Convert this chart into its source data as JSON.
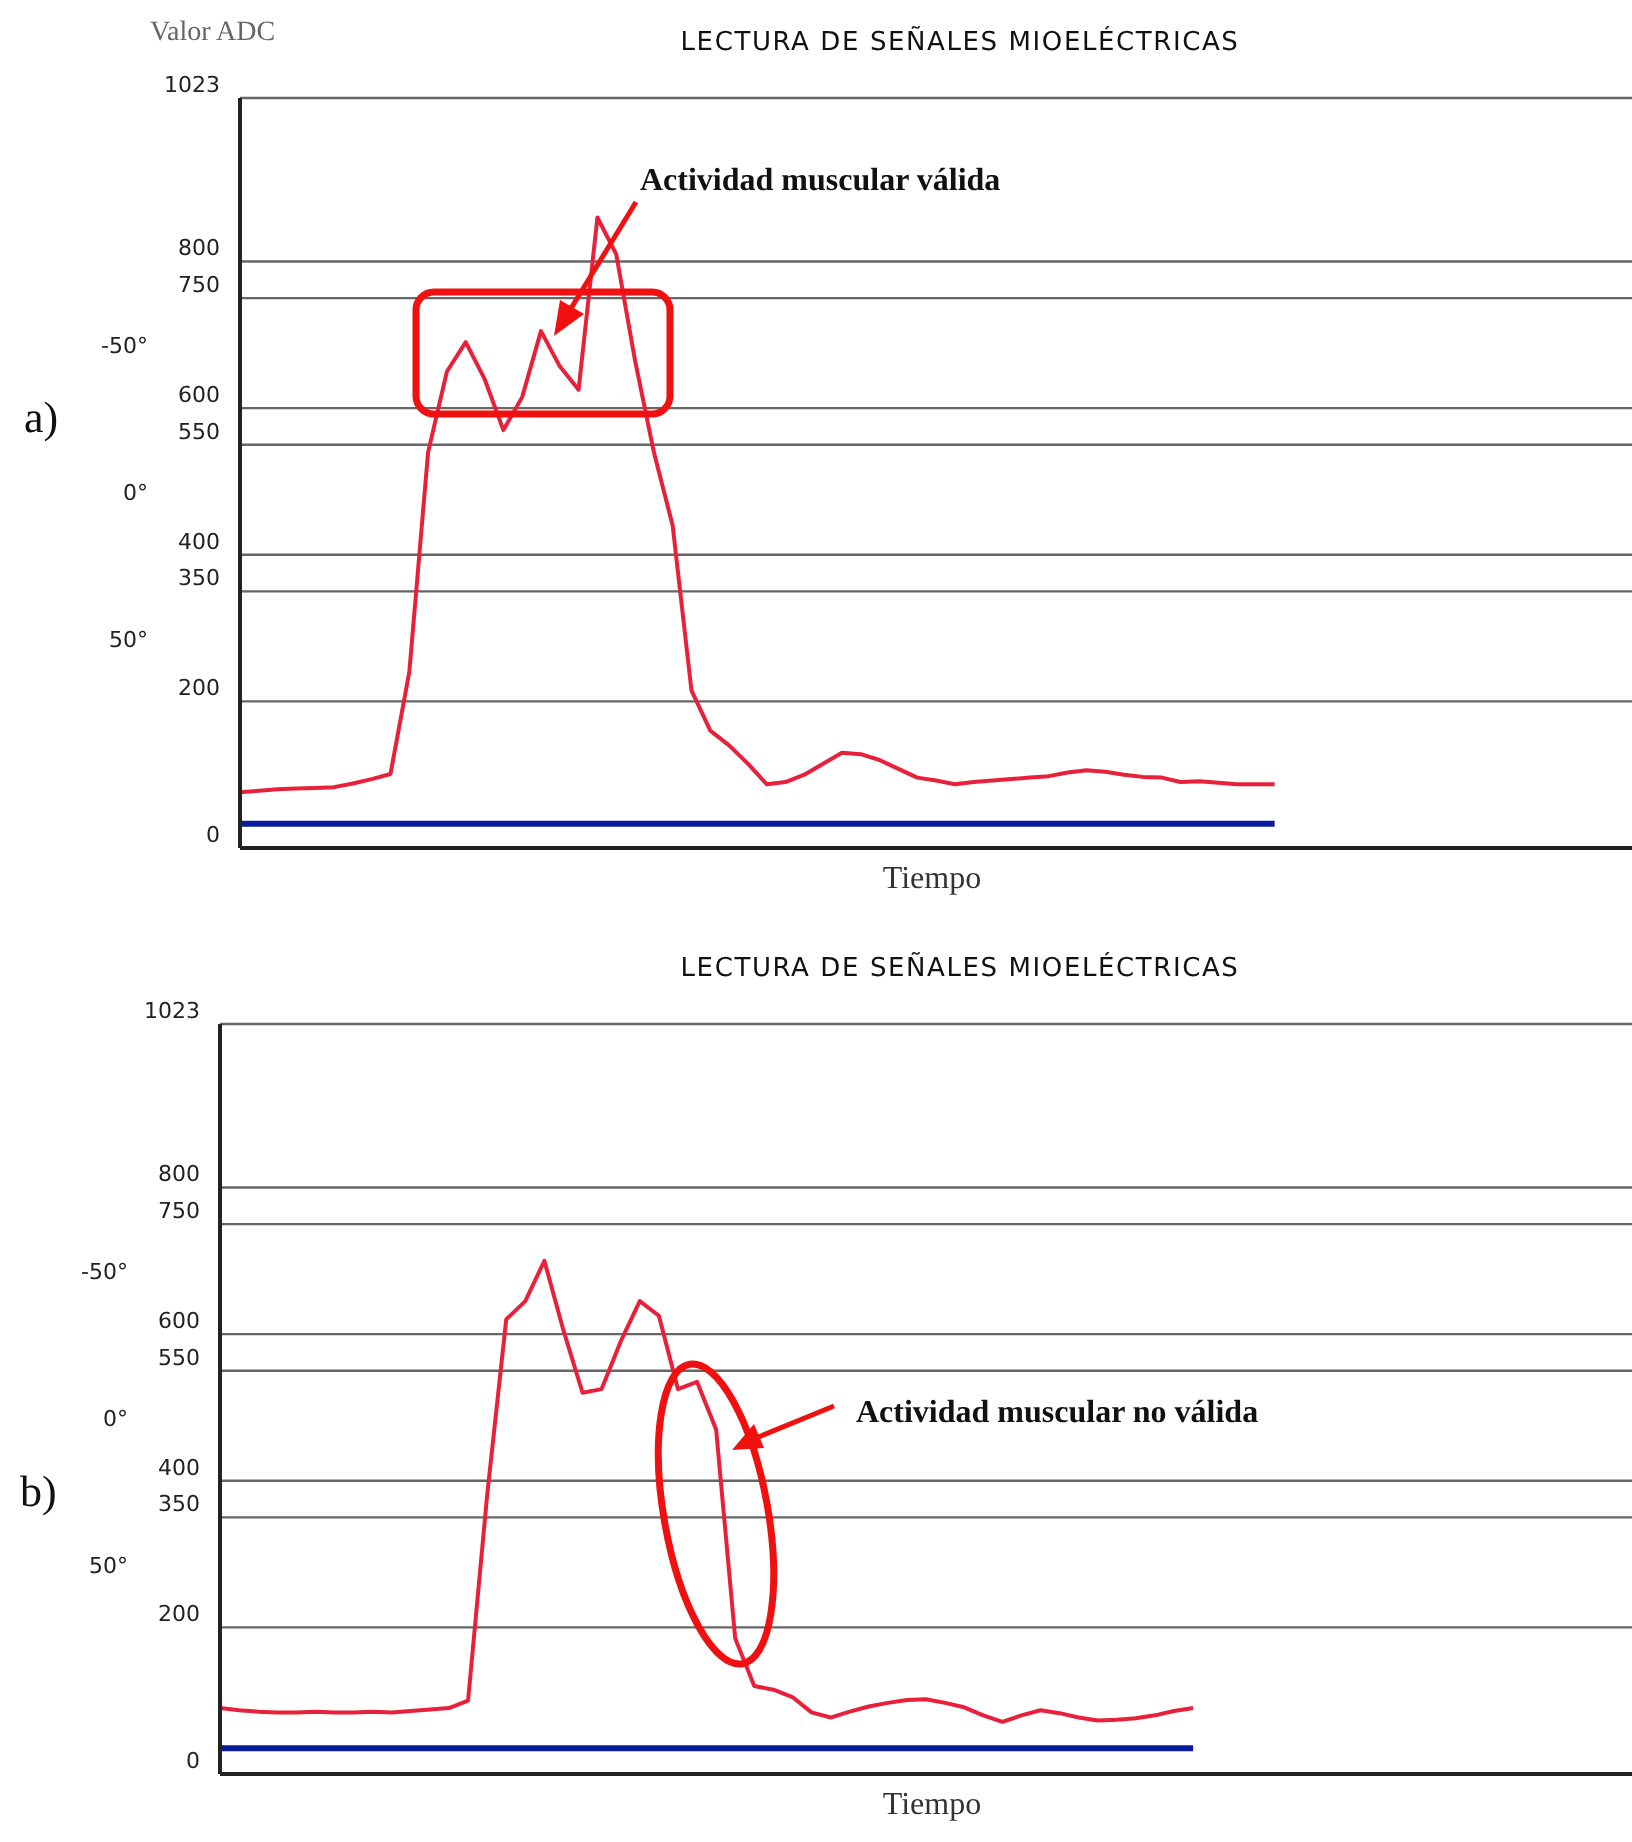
{
  "chart_data": [
    {
      "type": "line",
      "title": "LECTURA DE SEÑALES MIOELÉCTRICAS",
      "ylabel": "Valor ADC",
      "xlabel": "Tiempo",
      "categories": [
        null,
        null,
        null,
        null,
        null,
        null,
        null,
        null,
        null,
        null,
        null,
        null,
        null,
        null,
        null,
        null,
        null,
        null,
        null,
        null,
        null,
        null,
        null,
        null,
        null,
        null,
        null,
        null,
        null,
        null,
        null,
        null,
        null,
        null,
        null,
        null,
        null,
        null,
        null,
        null,
        null,
        null,
        null,
        null,
        null,
        null,
        null,
        null,
        null,
        null,
        null,
        null,
        null,
        null,
        null,
        null,
        null,
        null,
        null,
        null,
        null,
        null,
        null,
        null,
        null,
        null,
        null,
        null,
        null,
        null,
        null,
        null,
        null,
        null,
        null
      ],
      "series": [
        {
          "color": "#e8203a",
          "values": [
            76,
            78,
            80,
            81,
            82,
            83,
            88,
            94,
            101,
            240,
            540,
            650,
            690,
            640,
            570,
            615,
            705,
            657,
            625,
            860,
            810,
            665,
            540,
            440,
            215,
            160,
            140,
            115,
            87,
            90,
            100,
            115,
            130,
            128,
            120,
            108,
            96,
            92,
            87,
            90,
            92,
            94,
            96,
            98,
            103,
            106,
            104,
            100,
            97,
            96,
            90,
            91,
            89,
            87,
            87,
            87,
            null,
            null,
            null,
            null,
            null,
            null,
            null,
            null,
            null,
            null,
            null,
            null,
            null,
            null,
            null,
            null,
            null,
            null,
            null
          ]
        },
        {
          "color": "#0a1a9c",
          "values": [
            33,
            33,
            33,
            33,
            33,
            33,
            33,
            33,
            33,
            33,
            33,
            33,
            33,
            33,
            33,
            33,
            33,
            33,
            33,
            33,
            33,
            33,
            33,
            33,
            33,
            33,
            33,
            33,
            33,
            33,
            33,
            33,
            33,
            33,
            33,
            33,
            33,
            33,
            33,
            33,
            33,
            33,
            33,
            33,
            33,
            33,
            33,
            33,
            33,
            33,
            33,
            33,
            33,
            33,
            33,
            33,
            null,
            null,
            null,
            null,
            null,
            null,
            null,
            null,
            null,
            null,
            null,
            null,
            null,
            null,
            null,
            null,
            null,
            null,
            null
          ]
        }
      ],
      "ylim": [
        0,
        1023
      ],
      "yticks": [
        0,
        200,
        350,
        400,
        550,
        600,
        750,
        800,
        1023
      ],
      "y2lim": [
        121,
        -134
      ],
      "y2ticks": [
        {
          "value": -50,
          "label": "-50°"
        },
        {
          "value": 0,
          "label": "0°"
        },
        {
          "value": 50,
          "label": "50°"
        }
      ],
      "grid": "y",
      "marker": "none",
      "line_style": "solid",
      "tick_labels": "y",
      "annotations": [
        "a)",
        "Actividad muscular válida"
      ]
    },
    {
      "type": "line",
      "title": "LECTURA DE SEÑALES MIOELÉCTRICAS",
      "xlabel": "Tiempo",
      "categories": [
        null,
        null,
        null,
        null,
        null,
        null,
        null,
        null,
        null,
        null,
        null,
        null,
        null,
        null,
        null,
        null,
        null,
        null,
        null,
        null,
        null,
        null,
        null,
        null,
        null,
        null,
        null,
        null,
        null,
        null,
        null,
        null,
        null,
        null,
        null,
        null,
        null,
        null,
        null,
        null,
        null,
        null,
        null,
        null,
        null,
        null,
        null,
        null,
        null,
        null,
        null,
        null,
        null,
        null,
        null,
        null,
        null,
        null,
        null,
        null,
        null,
        null,
        null,
        null,
        null,
        null,
        null,
        null,
        null,
        null,
        null,
        null,
        null,
        null,
        null
      ],
      "series": [
        {
          "color": "#e8203a",
          "values": [
            90,
            87,
            85,
            84,
            84,
            85,
            84,
            84,
            85,
            84,
            86,
            88,
            90,
            100,
            380,
            620,
            645,
            700,
            605,
            520,
            525,
            590,
            645,
            625,
            525,
            535,
            470,
            185,
            120,
            115,
            105,
            84,
            77,
            85,
            92,
            97,
            101,
            102,
            97,
            91,
            80,
            71,
            80,
            87,
            83,
            77,
            73,
            74,
            76,
            80,
            86,
            90,
            null,
            null,
            null,
            null,
            null,
            null,
            null,
            null,
            null,
            null,
            null,
            null,
            null,
            null,
            null,
            null,
            null,
            null,
            null,
            null,
            null,
            null,
            null
          ]
        },
        {
          "color": "#0a1a9c",
          "values": [
            35,
            35,
            35,
            35,
            35,
            35,
            35,
            35,
            35,
            35,
            35,
            35,
            35,
            35,
            35,
            35,
            35,
            35,
            35,
            35,
            35,
            35,
            35,
            35,
            35,
            35,
            35,
            35,
            35,
            35,
            35,
            35,
            35,
            35,
            35,
            35,
            35,
            35,
            35,
            35,
            35,
            35,
            35,
            35,
            35,
            35,
            35,
            35,
            35,
            35,
            35,
            35,
            null,
            null,
            null,
            null,
            null,
            null,
            null,
            null,
            null,
            null,
            null,
            null,
            null,
            null,
            null,
            null,
            null,
            null,
            null,
            null,
            null,
            null,
            null
          ]
        }
      ],
      "ylim": [
        0,
        1023
      ],
      "yticks": [
        0,
        200,
        350,
        400,
        550,
        600,
        750,
        800,
        1023
      ],
      "y2lim": [
        121,
        -134
      ],
      "y2ticks": [
        {
          "value": -50,
          "label": "-50°"
        },
        {
          "value": 0,
          "label": "0°"
        },
        {
          "value": 50,
          "label": "50°"
        }
      ],
      "grid": "y",
      "marker": "none",
      "line_style": "solid",
      "tick_labels": "y",
      "annotations": [
        "b)",
        "Actividad muscular no válida"
      ]
    }
  ]
}
